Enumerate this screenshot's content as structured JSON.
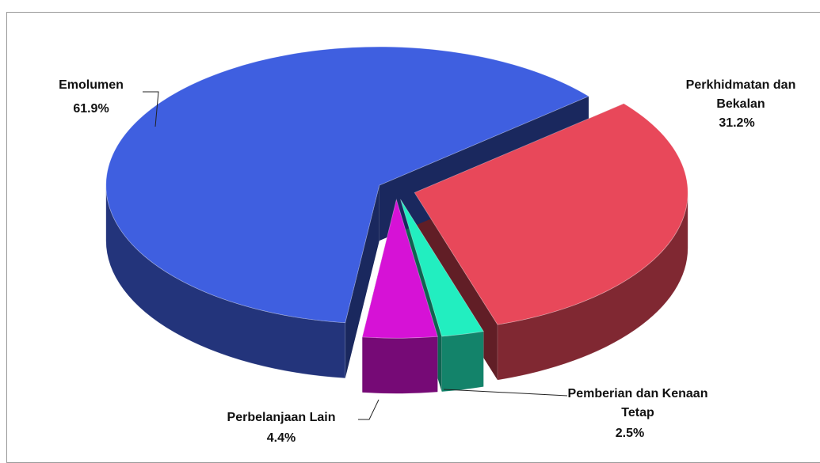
{
  "chart_data": {
    "type": "pie3d",
    "categories": [
      "Perkhidmatan dan Bekalan",
      "Pemberian dan Kenaan Tetap",
      "Perbelanjaan Lain",
      "Emolumen"
    ],
    "values": [
      31.2,
      2.5,
      4.4,
      61.9
    ],
    "value_labels": [
      "31.2%",
      "2.5%",
      "4.4%",
      "61.9%"
    ],
    "colors": [
      "#e8485a",
      "#22eec0",
      "#d612d6",
      "#3f5fe0"
    ]
  }
}
